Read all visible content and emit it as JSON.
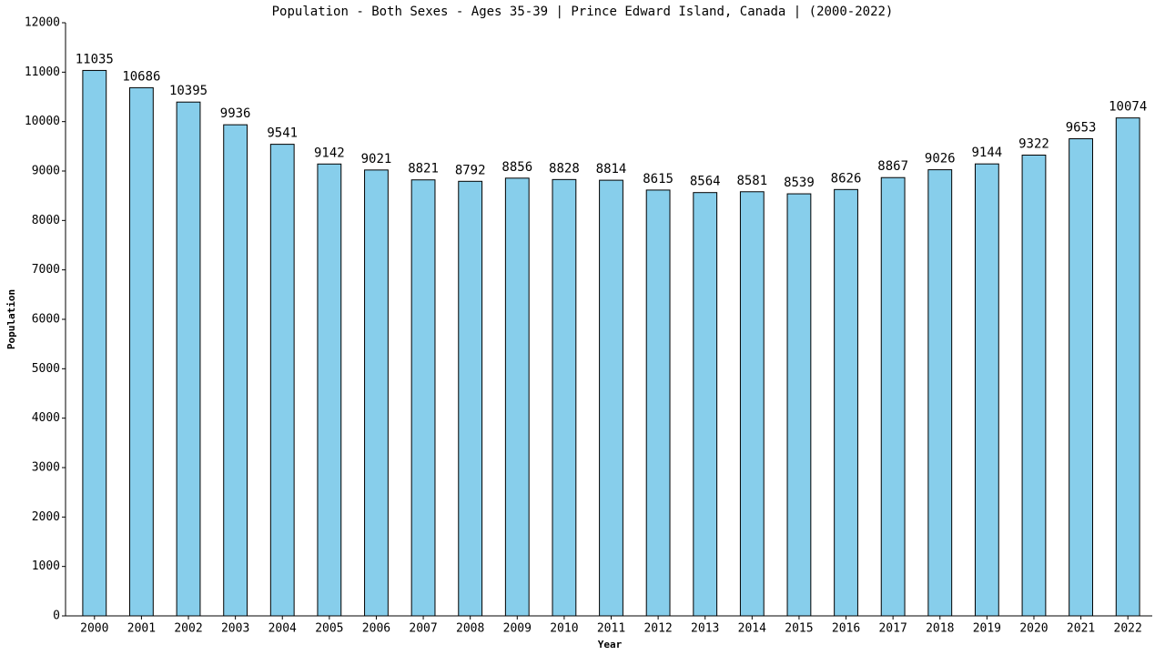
{
  "chart_data": {
    "type": "bar",
    "title": "Population - Both Sexes - Ages 35-39 | Prince Edward Island, Canada |  (2000-2022)",
    "x_label": "Year",
    "y_label": "Population",
    "categories": [
      "2000",
      "2001",
      "2002",
      "2003",
      "2004",
      "2005",
      "2006",
      "2007",
      "2008",
      "2009",
      "2010",
      "2011",
      "2012",
      "2013",
      "2014",
      "2015",
      "2016",
      "2017",
      "2018",
      "2019",
      "2020",
      "2021",
      "2022"
    ],
    "values": [
      11035,
      10686,
      10395,
      9936,
      9541,
      9142,
      9021,
      8821,
      8792,
      8856,
      8828,
      8814,
      8615,
      8564,
      8581,
      8539,
      8626,
      8867,
      9026,
      9144,
      9322,
      9653,
      10074
    ],
    "color": "#87ceeb",
    "ylim": [
      0,
      12000
    ],
    "yticks": [
      0,
      1000,
      2000,
      3000,
      4000,
      5000,
      6000,
      7000,
      8000,
      9000,
      10000,
      11000,
      12000
    ],
    "grid": false
  }
}
